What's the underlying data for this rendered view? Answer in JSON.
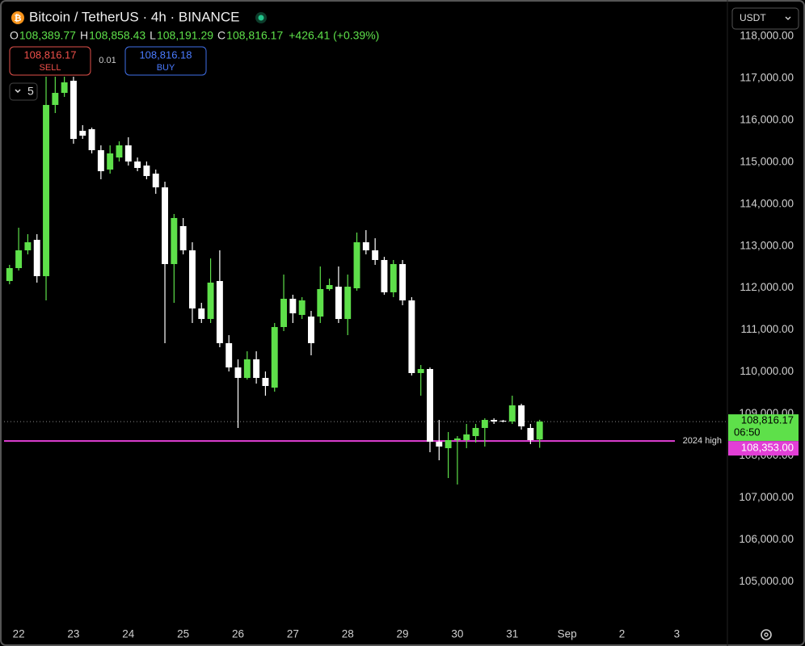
{
  "chart_data": {
    "type": "candlestick",
    "title": "Bitcoin / TetherUS · 4h · BINANCE",
    "ohlc_legend": [
      {
        "label": "O",
        "value": "108,389.77"
      },
      {
        "label": "H",
        "value": "108,858.43"
      },
      {
        "label": "L",
        "value": "108,191.29"
      },
      {
        "label": "C",
        "value": "108,816.17"
      }
    ],
    "change": "+426.41 (+0.39%)",
    "sell": {
      "price": "108,816.17",
      "label": "SELL"
    },
    "spread": "0.01",
    "buy": {
      "price": "108,816.18",
      "label": "BUY"
    },
    "indicator_count": "5",
    "currency": "USDT",
    "up_color": "#5ee04a",
    "down_color": "#ffffff",
    "open": [
      112167,
      112475,
      112899,
      113149,
      112283,
      116364,
      116652,
      116941,
      115748,
      115786,
      115286,
      114824,
      115112,
      115401,
      115016,
      114920,
      114727,
      114400,
      112571,
      113476,
      112899,
      111513,
      111262,
      112167,
      110685,
      110107,
      109857,
      110300,
      109857,
      109626,
      111070,
      111744,
      111359,
      111320,
      111320,
      111975,
      112032,
      111262,
      111994,
      113091,
      112899,
      112668,
      111898,
      112571,
      111705,
      109973,
      110069,
      108336,
      108182,
      108375,
      108375,
      108471,
      108664,
      108856,
      108837,
      108818,
      109203,
      108664,
      108389.77
    ],
    "high": [
      112552,
      113438,
      113284,
      113284,
      117037,
      117037,
      117037,
      117037,
      115882,
      115825,
      115401,
      115401,
      115497,
      115594,
      115112,
      115016,
      114824,
      114535,
      113765,
      113669,
      113091,
      111647,
      112706,
      112899,
      110877,
      110300,
      110492,
      110492,
      110011,
      111166,
      112321,
      111840,
      111782,
      111455,
      112514,
      112225,
      112514,
      112321,
      113322,
      113380,
      113187,
      112745,
      112668,
      112668,
      111782,
      110165,
      110107,
      108856,
      108567,
      108471,
      108760,
      108760,
      108895,
      108895,
      108856,
      109434,
      109241,
      108760,
      108858.43
    ],
    "low": [
      112090,
      112417,
      112802,
      112129,
      111705,
      116171,
      116556,
      115440,
      115555,
      115209,
      114593,
      114727,
      115016,
      114920,
      114785,
      114593,
      114246,
      110685,
      111647,
      112802,
      111166,
      111166,
      111166,
      110589,
      110011,
      108664,
      109819,
      109722,
      109434,
      109530,
      110974,
      111166,
      111262,
      110396,
      111166,
      111936,
      111166,
      110877,
      111936,
      112802,
      112552,
      111840,
      111782,
      111590,
      109915,
      109434,
      108086,
      107894,
      107470,
      107316,
      108182,
      108317,
      108221,
      108760,
      108799,
      108760,
      108625,
      108279,
      108191.29
    ],
    "close": [
      112475,
      112899,
      113091,
      112283,
      116364,
      116652,
      116903,
      115555,
      115632,
      115286,
      114785,
      115209,
      115401,
      115016,
      114862,
      114670,
      114400,
      112571,
      113669,
      112899,
      111513,
      111262,
      112129,
      110685,
      110107,
      109857,
      110300,
      109857,
      109665,
      111070,
      111744,
      111397,
      111705,
      110685,
      111975,
      112071,
      111262,
      112032,
      113091,
      112899,
      112668,
      111898,
      112571,
      111705,
      109973,
      110069,
      108336,
      108221,
      108375,
      108413,
      108510,
      108664,
      108856,
      108818,
      108818,
      109203,
      108702,
      108375,
      108816.17
    ],
    "xlim": [
      -0.6,
      78.1
    ],
    "xticks": [
      {
        "value": 1,
        "label": "22"
      },
      {
        "value": 7,
        "label": "23"
      },
      {
        "value": 13,
        "label": "24"
      },
      {
        "value": 19,
        "label": "25"
      },
      {
        "value": 25,
        "label": "26"
      },
      {
        "value": 31,
        "label": "27"
      },
      {
        "value": 37,
        "label": "28"
      },
      {
        "value": 43,
        "label": "29"
      },
      {
        "value": 49,
        "label": "30"
      },
      {
        "value": 55,
        "label": "31"
      },
      {
        "value": 61,
        "label": "Sep"
      },
      {
        "value": 67,
        "label": "2"
      },
      {
        "value": 73,
        "label": "3"
      }
    ],
    "ylim": [
      104044,
      118712
    ],
    "yticks": [
      {
        "value": 105000,
        "label": "105,000.00"
      },
      {
        "value": 106000,
        "label": "106,000.00"
      },
      {
        "value": 107000,
        "label": "107,000.00"
      },
      {
        "value": 108000,
        "label": "108,000.00"
      },
      {
        "value": 109000,
        "label": "109,000.00"
      },
      {
        "value": 110000,
        "label": "110,000.00"
      },
      {
        "value": 111000,
        "label": "111,000.00"
      },
      {
        "value": 112000,
        "label": "112,000.00"
      },
      {
        "value": 113000,
        "label": "113,000.00"
      },
      {
        "value": 114000,
        "label": "114,000.00"
      },
      {
        "value": 115000,
        "label": "115,000.00"
      },
      {
        "value": 116000,
        "label": "116,000.00"
      },
      {
        "value": 117000,
        "label": "117,000.00"
      },
      {
        "value": 118000,
        "label": "118,000.00"
      }
    ],
    "last_price": {
      "value": 108816.17,
      "label": "108,816.17",
      "countdown": "06:50",
      "color": "#5ee04a"
    },
    "hline": {
      "value": 108353,
      "label": "108,353.00",
      "name": "2024 high",
      "color": "#e23fd6"
    }
  }
}
